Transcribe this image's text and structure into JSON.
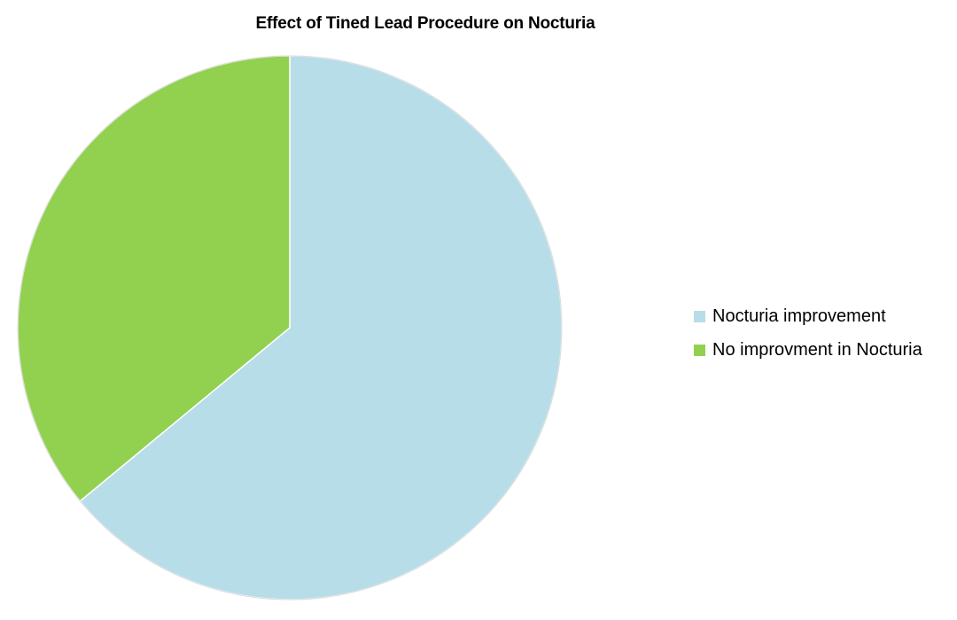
{
  "chart_data": {
    "type": "pie",
    "title": "Effect of Tined Lead Procedure on Nocturia",
    "categories": [
      "Nocturia improvement",
      "No improvment in Nocturia"
    ],
    "values": [
      64,
      36
    ],
    "colors": [
      "#b7dde8",
      "#92d050"
    ],
    "legend_position": "right",
    "start_angle": "12 o'clock",
    "direction": "clockwise"
  }
}
